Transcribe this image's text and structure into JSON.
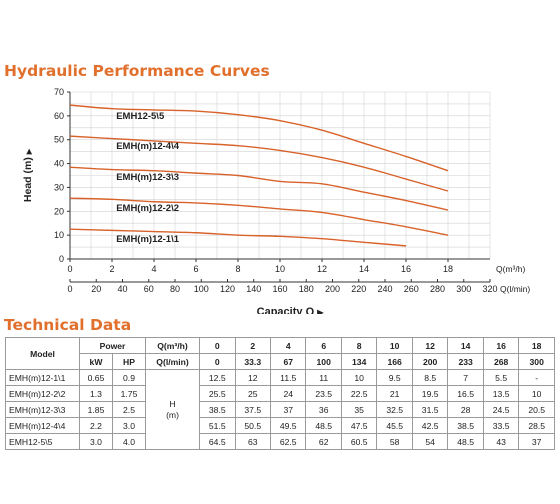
{
  "colors": {
    "accent": "#e0702c",
    "curve": "#d8622a",
    "grid": "#d2d2d2",
    "axis": "#333333"
  },
  "section_titles": {
    "curves": "Hydraulic Performance Curves",
    "table": "Technical Data"
  },
  "chart_data": {
    "type": "line",
    "title": "",
    "ylabel": "Head (m)",
    "xlabel": "Capacity Q",
    "x_unit_top": "Q(m³/h)",
    "x_unit_bottom": "Q(l/min)",
    "ylim": [
      0,
      70
    ],
    "xlim": [
      0,
      20
    ],
    "y_ticks": [
      0,
      10,
      20,
      30,
      40,
      50,
      60,
      70
    ],
    "x_ticks_top": [
      0,
      2,
      4,
      6,
      8,
      10,
      12,
      14,
      16,
      18
    ],
    "x_ticks_bottom": [
      0,
      20,
      40,
      60,
      80,
      100,
      120,
      140,
      160,
      180,
      200,
      220,
      240,
      260,
      280,
      300,
      320
    ],
    "grid": true,
    "x": [
      0,
      2,
      4,
      6,
      8,
      10,
      12,
      14,
      16,
      18
    ],
    "series": [
      {
        "name": "EMH12-5\\5",
        "values": [
          64.5,
          63,
          62.5,
          62,
          60.5,
          58,
          54,
          48.5,
          43,
          37
        ]
      },
      {
        "name": "EMH(m)12-4\\4",
        "values": [
          51.5,
          50.5,
          49.5,
          48.5,
          47.5,
          45.5,
          42.5,
          38.5,
          33.5,
          28.5
        ]
      },
      {
        "name": "EMH(m)12-3\\3",
        "values": [
          38.5,
          37.5,
          37,
          36,
          35,
          32.5,
          31.5,
          28,
          24.5,
          20.5
        ]
      },
      {
        "name": "EMH(m)12-2\\2",
        "values": [
          25.5,
          25,
          24,
          23.5,
          22.5,
          21,
          19.5,
          16.5,
          13.5,
          10
        ]
      },
      {
        "name": "EMH(m)12-1\\1",
        "values": [
          12.5,
          12,
          11.5,
          11,
          10,
          9.5,
          8.5,
          7,
          5.5,
          null
        ]
      }
    ]
  },
  "table": {
    "model_header": "Model",
    "power_header": "Power",
    "kw_header": "kW",
    "hp_header": "HP",
    "q_m3h_header": "Q(m³/h)",
    "q_lmin_header": "Q(l/min)",
    "h_label": "H",
    "h_unit": "(m)",
    "q_m3h": [
      "0",
      "2",
      "4",
      "6",
      "8",
      "10",
      "12",
      "14",
      "16",
      "18"
    ],
    "q_lmin": [
      "0",
      "33.3",
      "67",
      "100",
      "134",
      "166",
      "200",
      "233",
      "268",
      "300"
    ],
    "rows": [
      {
        "model": "EMH(m)12-1\\1",
        "kw": "0.65",
        "hp": "0.9",
        "h": [
          "12.5",
          "12",
          "11.5",
          "11",
          "10",
          "9.5",
          "8.5",
          "7",
          "5.5",
          "-"
        ]
      },
      {
        "model": "EMH(m)12-2\\2",
        "kw": "1.3",
        "hp": "1.75",
        "h": [
          "25.5",
          "25",
          "24",
          "23.5",
          "22.5",
          "21",
          "19.5",
          "16.5",
          "13.5",
          "10"
        ]
      },
      {
        "model": "EMH(m)12-3\\3",
        "kw": "1.85",
        "hp": "2.5",
        "h": [
          "38.5",
          "37.5",
          "37",
          "36",
          "35",
          "32.5",
          "31.5",
          "28",
          "24.5",
          "20.5"
        ]
      },
      {
        "model": "EMH(m)12-4\\4",
        "kw": "2.2",
        "hp": "3.0",
        "h": [
          "51.5",
          "50.5",
          "49.5",
          "48.5",
          "47.5",
          "45.5",
          "42.5",
          "38.5",
          "33.5",
          "28.5"
        ]
      },
      {
        "model": "EMH12-5\\5",
        "kw": "3.0",
        "hp": "4.0",
        "h": [
          "64.5",
          "63",
          "62.5",
          "62",
          "60.5",
          "58",
          "54",
          "48.5",
          "43",
          "37"
        ]
      }
    ]
  }
}
